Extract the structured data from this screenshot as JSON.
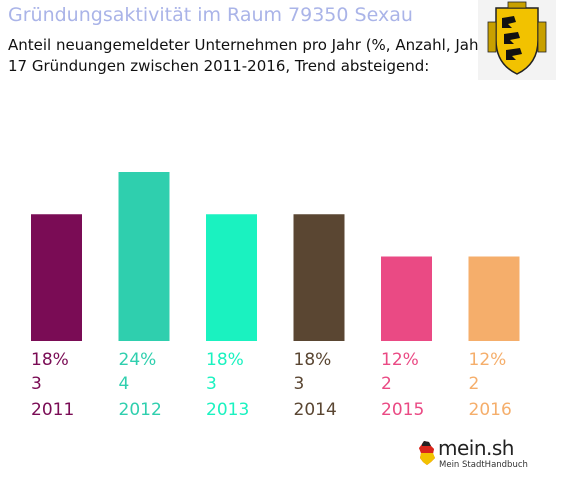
{
  "header": {
    "title": "Gründungsaktivität im Raum 79350 Sexau",
    "subtitle1": "Anteil neuangemeldeter Unternehmen pro Jahr (%, Anzahl, Jahr)",
    "subtitle2": "17 Gründungen zwischen 2011-2016, Trend absteigend:"
  },
  "logo": {
    "name": "mein.sh",
    "tagline": "Mein StadtHandbuch",
    "icon": "germany-map-icon"
  },
  "coat_of_arms": {
    "icon": "coat-of-arms-baden-wuerttemberg-icon"
  },
  "chart_data": {
    "type": "bar",
    "categories": [
      "2011",
      "2012",
      "2013",
      "2014",
      "2015",
      "2016"
    ],
    "percent_labels": [
      "18%",
      "24%",
      "18%",
      "18%",
      "12%",
      "12%"
    ],
    "count_labels": [
      "3",
      "4",
      "3",
      "3",
      "2",
      "2"
    ],
    "values": [
      3,
      4,
      3,
      3,
      2,
      2
    ],
    "colors": [
      "#7a0c55",
      "#2fcfae",
      "#1af2c0",
      "#5a4632",
      "#ea4a84",
      "#f5ae6b"
    ],
    "ylim": [
      0,
      4
    ]
  }
}
